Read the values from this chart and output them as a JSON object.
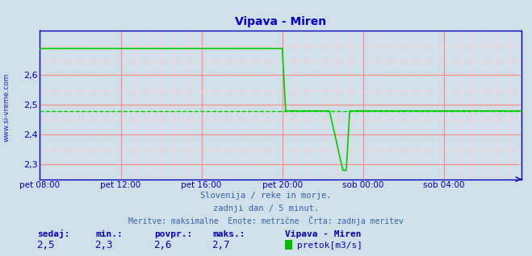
{
  "title": "Vipava - Miren",
  "title_color": "#0000cc",
  "background_color": "#d0dfe8",
  "plot_bg_color": "#d0dfe8",
  "line_color": "#00cc00",
  "avg_line_color": "#00cc00",
  "axis_color": "#0000bb",
  "grid_color_major": "#ff8888",
  "grid_color_minor": "#ffcccc",
  "xlabel_color": "#3366aa",
  "ylim": [
    2.25,
    2.75
  ],
  "yticks": [
    2.3,
    2.4,
    2.5,
    2.6
  ],
  "ytick_labels": [
    "2,3",
    "2,4",
    "2,5",
    "2,6"
  ],
  "xtick_labels": [
    "pet 08:00",
    "pet 12:00",
    "pet 16:00",
    "pet 20:00",
    "sob 00:00",
    "sob 04:00"
  ],
  "xtick_positions": [
    0,
    24,
    48,
    72,
    96,
    120
  ],
  "total_points": 144,
  "subtitle1": "Slovenija / reke in morje.",
  "subtitle2": "zadnji dan / 5 minut.",
  "subtitle3": "Meritve: maksimalne  Enote: metrične  Črta: zadnja meritev",
  "footer_labels": [
    "sedaj:",
    "min.:",
    "povpr.:",
    "maks.:"
  ],
  "footer_values": [
    "2,5",
    "2,3",
    "2,6",
    "2,7"
  ],
  "footer_station": "Vipava - Miren",
  "footer_series": "pretok[m3/s]",
  "legend_color": "#00bb00",
  "avg_value": 2.48,
  "high_value": 2.69,
  "low_value": 2.28,
  "drop_start": 72,
  "drop_to_avg": 73,
  "drop_to_low_start": 86,
  "drop_to_low_end": 90,
  "recovery_start": 91,
  "recovery_end": 92
}
